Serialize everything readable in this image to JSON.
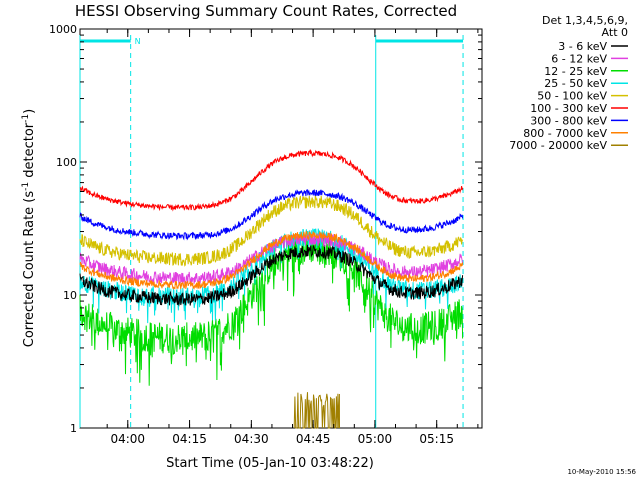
{
  "chart_data": {
    "type": "line",
    "title": "HESSI Observing Summary Count Rates, Corrected",
    "xlabel": "Start Time (05-Jan-10 03:48:22)",
    "ylabel": "Corrected Count Rate (s⁻¹ detector⁻¹)",
    "ylabel_parts": {
      "main": "Corrected Count Rate (s",
      "exp1": "-1",
      "mid": " detector",
      "exp2": "-1",
      "end": ")"
    },
    "yscale": "log",
    "ylim": [
      1,
      1000
    ],
    "xlim": [
      "03:48:22",
      "05:26:00"
    ],
    "y_tick_labels": [
      "1",
      "10",
      "100",
      "1000"
    ],
    "x_tick_labels": [
      "04:00",
      "04:15",
      "04:30",
      "04:45",
      "05:00",
      "05:15"
    ],
    "x_tick_minutes": [
      11.6,
      26.6,
      41.6,
      56.6,
      71.6,
      86.6
    ],
    "x_range_minutes": [
      0,
      97.6
    ],
    "legend_header": [
      "Det 1,3,4,5,6,9,",
      "Att 0"
    ],
    "legend_position": "right",
    "timestamp": "10-May-2010 15:56",
    "flag_marker": "N",
    "flag_color": "#00e5e5",
    "flag_bars": [
      {
        "start": 0.0,
        "end": 12.3,
        "label": "N"
      },
      {
        "start": 71.8,
        "end": 93.0,
        "label": ""
      }
    ],
    "night_boundaries": [
      0.0,
      12.3,
      71.8,
      93.0
    ],
    "series": [
      {
        "name": "3 - 6 keV",
        "color": "#000000",
        "base": 9,
        "peak": 22,
        "noise": 0.05
      },
      {
        "name": "6 - 12 keV",
        "color": "#e040e0",
        "base": 13,
        "peak": 27,
        "noise": 0.05
      },
      {
        "name": "12 - 25 keV",
        "color": "#00dd00",
        "base": 4.5,
        "peak": 24,
        "noise": 0.12
      },
      {
        "name": "25 - 50 keV",
        "color": "#00e5e5",
        "base": 9.5,
        "peak": 28,
        "noise": 0.07
      },
      {
        "name": "50 - 100 keV",
        "color": "#d4c000",
        "base": 18,
        "peak": 52,
        "noise": 0.05
      },
      {
        "name": "100 - 300 keV",
        "color": "#ff0000",
        "base": 44,
        "peak": 120,
        "noise": 0.02
      },
      {
        "name": "300 - 800 keV",
        "color": "#0000ff",
        "base": 27,
        "peak": 60,
        "noise": 0.025
      },
      {
        "name": "800 - 7000 keV",
        "color": "#ff8000",
        "base": 11.5,
        "peak": 29,
        "noise": 0.03
      },
      {
        "name": "7000 - 20000 keV",
        "color": "#a08000",
        "base": 1,
        "peak": 1.9,
        "noise": 0.0
      }
    ]
  }
}
